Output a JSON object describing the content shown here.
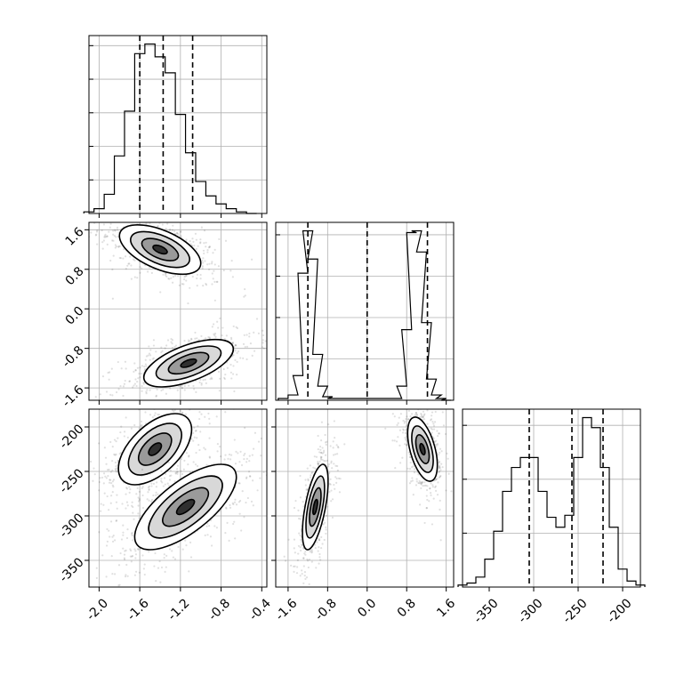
{
  "chart_data": [
    {
      "type": "histogram",
      "panel": "hist_param1",
      "x": [
        -2.1,
        -2.0,
        -1.9,
        -1.8,
        -1.7,
        -1.6,
        -1.5,
        -1.4,
        -1.3,
        -1.2,
        -1.1,
        -1.0,
        -0.9,
        -0.8,
        -0.7,
        -0.6,
        -0.5
      ],
      "counts": [
        1,
        3,
        12,
        36,
        64,
        100,
        106,
        98,
        88,
        62,
        38,
        20,
        11,
        6,
        3,
        1,
        0
      ],
      "xlim": [
        -2.1,
        -0.35
      ],
      "quantiles": [
        -1.6,
        -1.37,
        -1.08
      ]
    },
    {
      "type": "histogram",
      "panel": "hist_param2",
      "x": [
        -1.7,
        -1.5,
        -1.4,
        -1.3,
        -1.2,
        -1.1,
        -1.0,
        -0.9,
        -0.8,
        -0.7,
        0.6,
        0.7,
        0.8,
        0.9,
        1.0,
        1.1,
        1.2,
        1.3,
        1.4,
        1.5,
        1.6
      ],
      "counts": [
        1,
        3,
        14,
        72,
        96,
        80,
        26,
        8,
        2,
        1,
        1,
        8,
        40,
        95,
        96,
        84,
        44,
        12,
        3,
        1,
        0
      ],
      "xlim": [
        -1.85,
        1.75
      ],
      "quantiles": [
        -1.2,
        0.0,
        1.22
      ]
    },
    {
      "type": "histogram",
      "panel": "hist_param3",
      "x": [
        -380,
        -370,
        -360,
        -350,
        -340,
        -330,
        -320,
        -310,
        -300,
        -290,
        -280,
        -270,
        -260,
        -250,
        -240,
        -230,
        -220,
        -210,
        -200,
        -190,
        -180
      ],
      "counts": [
        1,
        2,
        5,
        14,
        28,
        48,
        60,
        65,
        65,
        48,
        35,
        30,
        36,
        65,
        85,
        80,
        60,
        30,
        9,
        3,
        1
      ],
      "xlim": [
        -380,
        -180
      ],
      "quantiles": [
        -305,
        -257,
        -222
      ]
    },
    {
      "type": "scatter",
      "panel": "param1_vs_param2",
      "clusters": [
        {
          "center": [
            -1.4,
            1.2
          ],
          "spread": [
            0.2,
            0.25
          ],
          "rho": -0.55,
          "n": 550
        },
        {
          "center": [
            -1.12,
            -1.1
          ],
          "spread": [
            0.22,
            0.24
          ],
          "rho": 0.6,
          "n": 550
        }
      ],
      "xlim": [
        -2.1,
        -0.35
      ],
      "ylim": [
        -1.85,
        1.75
      ]
    },
    {
      "type": "scatter",
      "panel": "param1_vs_param3",
      "clusters": [
        {
          "center": [
            -1.45,
            -225
          ],
          "spread": [
            0.18,
            20
          ],
          "rho": 0.55,
          "n": 550
        },
        {
          "center": [
            -1.15,
            -290
          ],
          "spread": [
            0.25,
            24
          ],
          "rho": 0.7,
          "n": 550
        }
      ],
      "xlim": [
        -2.1,
        -0.35
      ],
      "ylim": [
        -380,
        -180
      ]
    },
    {
      "type": "scatter",
      "panel": "param2_vs_param3",
      "clusters": [
        {
          "center": [
            -1.05,
            -290
          ],
          "spread": [
            0.13,
            24
          ],
          "rho": 0.6,
          "n": 520
        },
        {
          "center": [
            1.12,
            -225
          ],
          "spread": [
            0.15,
            18
          ],
          "rho": -0.5,
          "n": 520
        }
      ],
      "xlim": [
        -1.85,
        1.75
      ],
      "ylim": [
        -380,
        -180
      ]
    }
  ],
  "axes": {
    "param1_ticks": [
      "-2.0",
      "-1.6",
      "-1.2",
      "-0.8",
      "-0.4"
    ],
    "param2_ticks": [
      "-1.6",
      "-0.8",
      "0.0",
      "0.8",
      "1.6"
    ],
    "param3_ticks": [
      "-350",
      "-300",
      "-250",
      "-200"
    ],
    "param2_yticks": [
      "1.6",
      "0.8",
      "0.0",
      "-0.8",
      "-1.6"
    ],
    "param3_yticks": [
      "-200",
      "-250",
      "-300",
      "-350"
    ]
  },
  "style": {
    "line_color": "#000000",
    "grid_color": "#b0b0b0",
    "contour_fills": [
      "#ffffff",
      "#d8d8d8",
      "#9a9a9a",
      "#303030"
    ]
  }
}
